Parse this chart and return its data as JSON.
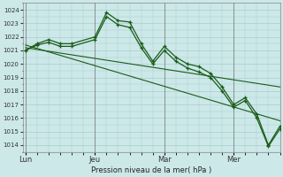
{
  "background_color": "#cce8e8",
  "grid_color": "#aacccc",
  "line_color": "#1a5c1a",
  "title": "Pression niveau de la mer( hPa )",
  "ylim": [
    1013.5,
    1024.5
  ],
  "yticks": [
    1014,
    1015,
    1016,
    1017,
    1018,
    1019,
    1020,
    1021,
    1022,
    1023,
    1024
  ],
  "day_labels": [
    "Lun",
    "Jeu",
    "Mar",
    "Mer"
  ],
  "day_positions": [
    0,
    12,
    24,
    36
  ],
  "xlim": [
    -0.5,
    44
  ],
  "main_x": [
    0,
    2,
    4,
    6,
    8,
    12,
    14,
    16,
    18,
    20,
    22,
    24,
    26,
    28,
    30,
    32,
    34,
    36,
    38,
    40,
    42,
    44
  ],
  "main_y": [
    1021.0,
    1021.5,
    1021.8,
    1021.5,
    1021.5,
    1022.0,
    1023.8,
    1023.2,
    1023.1,
    1021.5,
    1020.2,
    1021.3,
    1020.5,
    1020.0,
    1019.8,
    1019.3,
    1018.3,
    1017.0,
    1017.5,
    1016.3,
    1014.0,
    1015.4
  ],
  "line2_x": [
    0,
    2,
    4,
    6,
    8,
    12,
    14,
    16,
    18,
    20,
    22,
    24,
    26,
    28,
    30,
    32,
    34,
    36,
    38,
    40,
    42,
    44
  ],
  "line2_y": [
    1021.0,
    1021.4,
    1021.6,
    1021.3,
    1021.3,
    1021.8,
    1023.5,
    1022.9,
    1022.7,
    1021.2,
    1020.0,
    1021.0,
    1020.2,
    1019.7,
    1019.4,
    1019.0,
    1018.0,
    1016.8,
    1017.3,
    1016.0,
    1013.9,
    1015.2
  ],
  "trend1_x": [
    0,
    44
  ],
  "trend1_y": [
    1021.2,
    1018.3
  ],
  "trend2_x": [
    0,
    44
  ],
  "trend2_y": [
    1021.4,
    1015.8
  ]
}
